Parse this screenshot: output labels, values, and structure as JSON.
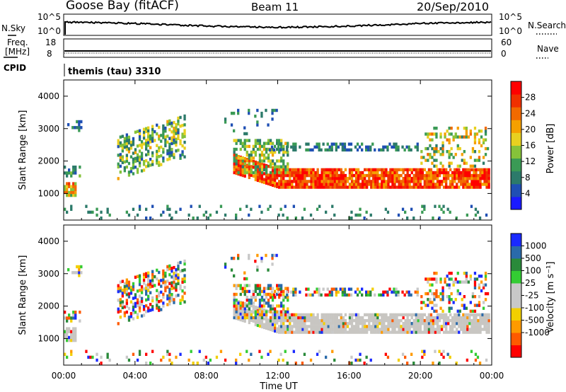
{
  "header": {
    "station": "Goose Bay (fitACF)",
    "beam": "Beam 11",
    "date": "20/Sep/2010"
  },
  "summary_panels": {
    "nsky_label": "N.Sky",
    "nsky_ticks": [
      "10^5",
      "10^0"
    ],
    "nsearch_label": "N.Search",
    "freq_label_1": "Freq.",
    "freq_label_2": "[MHz]",
    "freq_ticks": [
      "18",
      "8"
    ],
    "nave_label": "Nave",
    "nave_ticks": [
      "60",
      "0"
    ],
    "cpid_label": "CPID",
    "cpid_value": "themis (tau) 3310"
  },
  "colors": {
    "power": [
      "#1a1aff",
      "#1f4fb4",
      "#2c7a6a",
      "#3a9a55",
      "#86c23a",
      "#e8d020",
      "#f5a000",
      "#f26a00",
      "#f03000",
      "#ff0000"
    ],
    "velocity": [
      "#ff0000",
      "#ff5a00",
      "#ff9a00",
      "#f2cf00",
      "#c8c8c8",
      "#c8c8c8",
      "#33cc33",
      "#2a8a3a",
      "#2a6aaa",
      "#1a2aff"
    ],
    "gray": "#c8c6c2"
  },
  "chart_data": [
    {
      "type": "heatmap",
      "name": "power",
      "ylabel": "Slant Range [km]",
      "yticks": [
        "4000",
        "3000",
        "2000",
        "1000"
      ],
      "ylim": [
        180,
        4500
      ],
      "xlim": [
        0,
        24
      ],
      "colorbar_label": "Power [dB]",
      "colorbar_ticks": [
        "28",
        "24",
        "20",
        "16",
        "12",
        "8",
        "4"
      ],
      "clim": [
        0,
        32
      ]
    },
    {
      "type": "heatmap",
      "name": "velocity",
      "ylabel": "Slant Range [km]",
      "yticks": [
        "4000",
        "3000",
        "2000",
        "1000"
      ],
      "ylim": [
        180,
        4500
      ],
      "xlim": [
        0,
        24
      ],
      "xlabel": "Time UT",
      "xticks": [
        "00:00",
        "04:00",
        "08:00",
        "12:00",
        "16:00",
        "20:00",
        "00:00"
      ],
      "colorbar_label": "Velocity [m s⁻¹]",
      "colorbar_ticks": [
        "1000",
        "500",
        "100",
        "25",
        "-25",
        "-100",
        "-500",
        "-1000"
      ]
    }
  ]
}
